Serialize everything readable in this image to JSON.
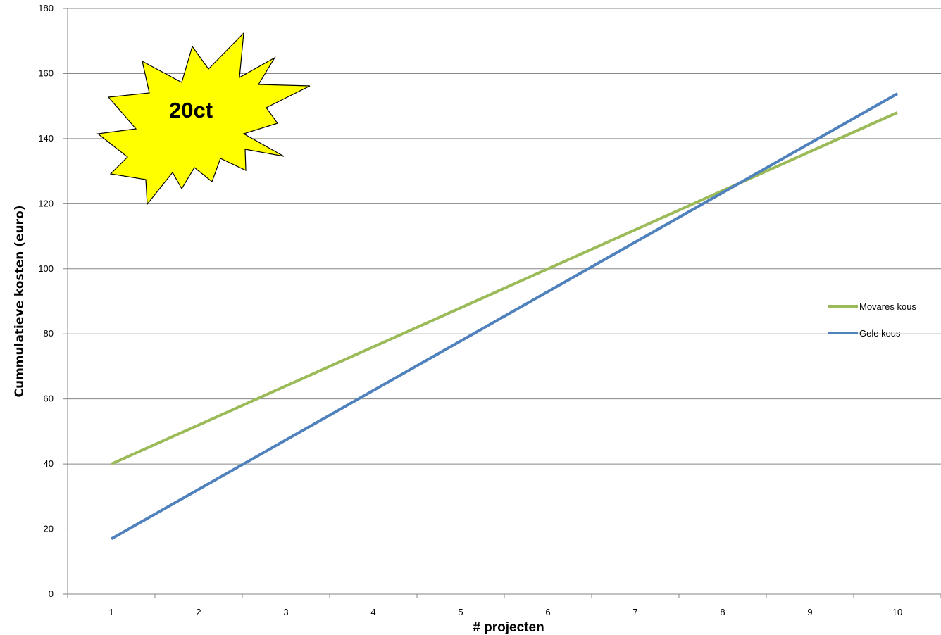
{
  "chart_data": {
    "type": "line",
    "title": "",
    "xlabel": "# projecten",
    "ylabel": "Cummulatieve kosten (euro)",
    "categories": [
      1,
      2,
      3,
      4,
      5,
      6,
      7,
      8,
      9,
      10
    ],
    "ylim": [
      0,
      180
    ],
    "yticks": [
      0,
      20,
      40,
      60,
      80,
      100,
      120,
      140,
      160,
      180
    ],
    "grid": "horizontal",
    "legend_position": "right",
    "series": [
      {
        "name": "Movares kous",
        "color": "#9BBB59",
        "values": [
          40,
          52,
          64,
          76,
          88,
          100,
          112,
          124,
          136,
          148
        ]
      },
      {
        "name": "Gele kous",
        "color": "#4F81BD",
        "values": [
          17,
          32.2,
          47.4,
          62.6,
          77.8,
          93,
          108.2,
          123.4,
          138.6,
          153.8
        ]
      }
    ],
    "annotation": {
      "text": "20ct",
      "shape": "starburst",
      "color": "#FFFF00"
    }
  }
}
